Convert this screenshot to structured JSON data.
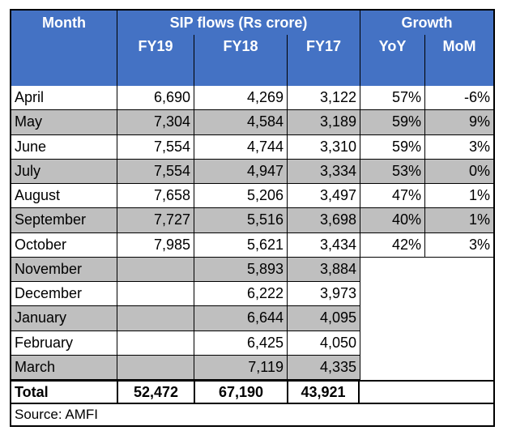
{
  "header": {
    "month": "Month",
    "sip_flows": "SIP flows (Rs crore)",
    "growth": "Growth",
    "fy19": "FY19",
    "fy18": "FY18",
    "fy17": "FY17",
    "yoy": "YoY",
    "mom": "MoM"
  },
  "rows": [
    {
      "month": "April",
      "fy19": "6,690",
      "fy18": "4,269",
      "fy17": "3,122",
      "yoy": "57%",
      "mom": "-6%"
    },
    {
      "month": "May",
      "fy19": "7,304",
      "fy18": "4,584",
      "fy17": "3,189",
      "yoy": "59%",
      "mom": "9%"
    },
    {
      "month": "June",
      "fy19": "7,554",
      "fy18": "4,744",
      "fy17": "3,310",
      "yoy": "59%",
      "mom": "3%"
    },
    {
      "month": "July",
      "fy19": "7,554",
      "fy18": "4,947",
      "fy17": "3,334",
      "yoy": "53%",
      "mom": "0%"
    },
    {
      "month": "August",
      "fy19": "7,658",
      "fy18": "5,206",
      "fy17": "3,497",
      "yoy": "47%",
      "mom": "1%"
    },
    {
      "month": "September",
      "fy19": "7,727",
      "fy18": "5,516",
      "fy17": "3,698",
      "yoy": "40%",
      "mom": "1%"
    },
    {
      "month": "October",
      "fy19": "7,985",
      "fy18": "5,621",
      "fy17": "3,434",
      "yoy": "42%",
      "mom": "3%"
    },
    {
      "month": "November",
      "fy19": "",
      "fy18": "5,893",
      "fy17": "3,884",
      "yoy": "",
      "mom": ""
    },
    {
      "month": "December",
      "fy19": "",
      "fy18": "6,222",
      "fy17": "3,973",
      "yoy": "",
      "mom": ""
    },
    {
      "month": "January",
      "fy19": "",
      "fy18": "6,644",
      "fy17": "4,095",
      "yoy": "",
      "mom": ""
    },
    {
      "month": "February",
      "fy19": "",
      "fy18": "6,425",
      "fy17": "4,050",
      "yoy": "",
      "mom": ""
    },
    {
      "month": "March",
      "fy19": "",
      "fy18": "7,119",
      "fy17": "4,335",
      "yoy": "",
      "mom": ""
    }
  ],
  "total": {
    "label": "Total",
    "fy19": "52,472",
    "fy18": "67,190",
    "fy17": "43,921"
  },
  "source": "Source: AMFI",
  "colors": {
    "header_bg": "#4472c4",
    "stripe": "#bfbfbf"
  }
}
